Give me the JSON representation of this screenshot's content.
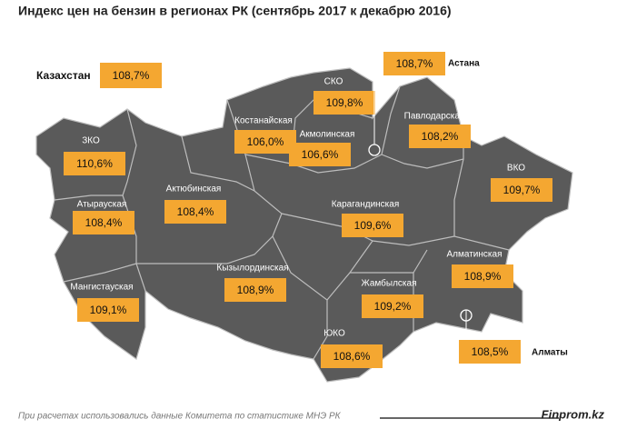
{
  "title": "Индекс цен на бензин в регионах РК (сентябрь 2017 к декабрю 2016)",
  "country": {
    "name": "Казахстан",
    "value": "108,7%"
  },
  "regions": [
    {
      "name": "СКО",
      "value": "109,8%"
    },
    {
      "name": "Костанайская",
      "value": "106,0%"
    },
    {
      "name": "Акмолинская",
      "value": "106,6%"
    },
    {
      "name": "Павлодарская",
      "value": "108,2%"
    },
    {
      "name": "ЗКО",
      "value": "110,6%"
    },
    {
      "name": "ВКО",
      "value": "109,7%"
    },
    {
      "name": "Атырауская",
      "value": "108,4%"
    },
    {
      "name": "Актюбинская",
      "value": "108,4%"
    },
    {
      "name": "Карагандинская",
      "value": "109,6%"
    },
    {
      "name": "Алматинская",
      "value": "108,9%"
    },
    {
      "name": "Кызылординская",
      "value": "108,9%"
    },
    {
      "name": "Мангистауская",
      "value": "109,1%"
    },
    {
      "name": "Жамбылская",
      "value": "109,2%"
    },
    {
      "name": "ЮКО",
      "value": "108,6%"
    }
  ],
  "cities": [
    {
      "name": "Астана",
      "value": "108,7%"
    },
    {
      "name": "Алматы",
      "value": "108,5%"
    }
  ],
  "footer": {
    "source": "При расчетах использовались данные Комитета по статистике МНЭ РК",
    "brand": "Finprom.kz"
  }
}
